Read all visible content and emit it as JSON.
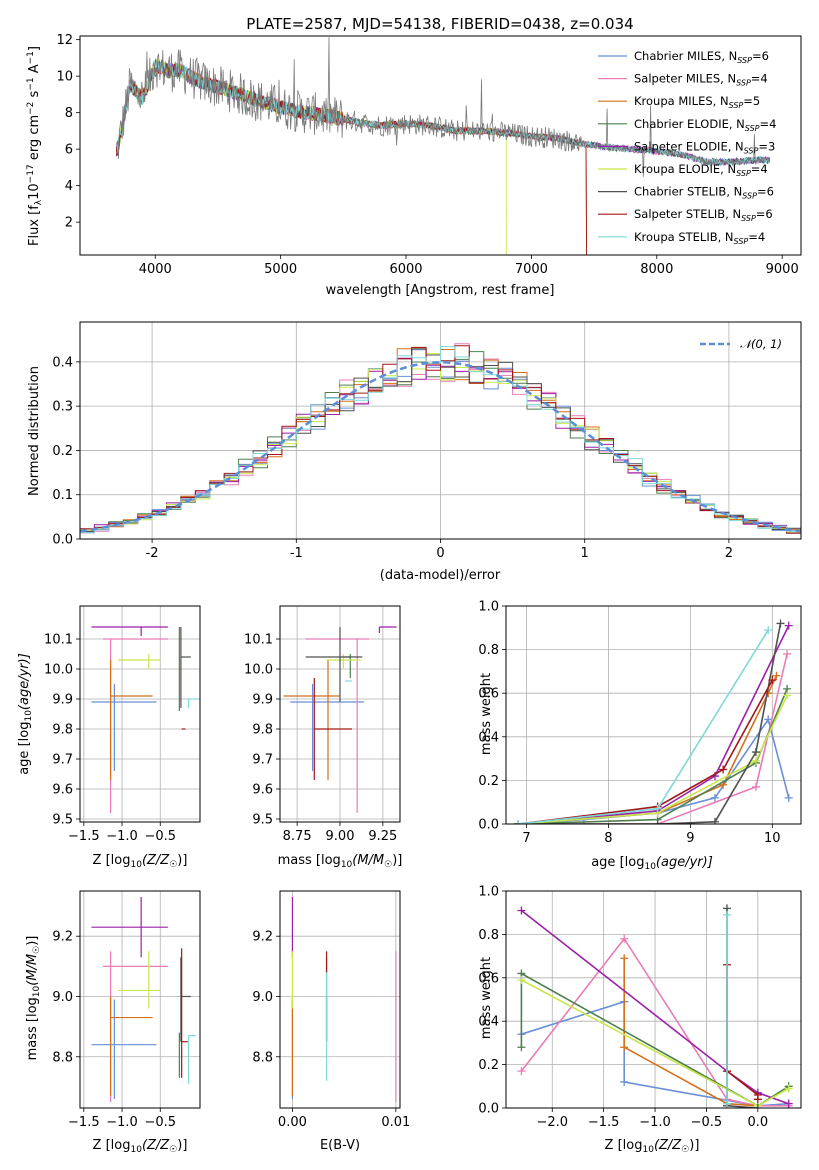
{
  "figure": {
    "title": "PLATE=2587, MJD=54138, FIBERID=0438, z=0.034"
  },
  "models": [
    {
      "label": "Chabrier MILES, N",
      "sub": "SSP",
      "tail": "=6",
      "color": "#6a8fd8"
    },
    {
      "label": "Salpeter MILES, N",
      "sub": "SSP",
      "tail": "=4",
      "color": "#e87db5"
    },
    {
      "label": "Kroupa MILES, N",
      "sub": "SSP",
      "tail": "=5",
      "color": "#d4701a"
    },
    {
      "label": "Chabrier ELODIE, N",
      "sub": "SSP",
      "tail": "=4",
      "color": "#4f7f4f"
    },
    {
      "label": "Salpeter ELODIE, N",
      "sub": "SSP",
      "tail": "=3",
      "color": "#9b1fa8"
    },
    {
      "label": "Kroupa ELODIE, N",
      "sub": "SSP",
      "tail": "=4",
      "color": "#c6e84a"
    },
    {
      "label": "Chabrier STELIB, N",
      "sub": "SSP",
      "tail": "=6",
      "color": "#505050"
    },
    {
      "label": "Salpeter STELIB, N",
      "sub": "SSP",
      "tail": "=6",
      "color": "#a01818"
    },
    {
      "label": "Kroupa STELIB, N",
      "sub": "SSP",
      "tail": "=4",
      "color": "#7fd8d8"
    }
  ],
  "chart_data": [
    {
      "id": "spectrum",
      "type": "line",
      "xlabel": "wavelength [Angstrom, rest frame]",
      "ylabel_main": "Flux [f",
      "ylabel_sub": "λ",
      "ylabel_mid": "10",
      "ylabel_exp1": "−17",
      "ylabel_mid2": " erg cm",
      "ylabel_exp2": "−2",
      "ylabel_mid3": " s",
      "ylabel_exp3": "−1",
      "ylabel_mid4": " A",
      "ylabel_exp4": "−1",
      "ylabel_end": "]",
      "xlim": [
        3400,
        9150
      ],
      "ylim": [
        0.2,
        12.2
      ],
      "xticks": [
        4000,
        5000,
        6000,
        7000,
        8000,
        9000
      ],
      "yticks": [
        2,
        4,
        6,
        8,
        10,
        12
      ],
      "grid": false,
      "legend": "top-right",
      "data_x": [
        3700,
        3800,
        3900,
        4000,
        4100,
        4200,
        4300,
        4400,
        4500,
        4600,
        4800,
        5000,
        5200,
        5400,
        5600,
        5800,
        6000,
        6200,
        6400,
        6600,
        6800,
        7000,
        7200,
        7400,
        7600,
        7800,
        8000,
        8200,
        8400,
        8600,
        8800,
        8900
      ],
      "data_y": [
        6.0,
        9.5,
        8.8,
        10.6,
        10.3,
        10.3,
        9.9,
        9.6,
        9.4,
        9.2,
        8.7,
        8.3,
        8.0,
        7.8,
        7.5,
        7.3,
        7.4,
        7.3,
        7.0,
        7.0,
        6.9,
        6.7,
        6.6,
        6.3,
        6.1,
        6.0,
        5.9,
        5.7,
        5.3,
        5.3,
        5.4,
        5.4
      ],
      "model_cutoff_x": [
        null,
        null,
        7440,
        null,
        null,
        6800,
        null,
        7440,
        null
      ]
    },
    {
      "id": "residuals",
      "type": "area",
      "xlabel": "(data-model)/error",
      "ylabel": "Normed distribution",
      "xlim": [
        -2.5,
        2.5
      ],
      "ylim": [
        0.0,
        0.49
      ],
      "xticks": [
        -2,
        -1,
        0,
        1,
        2
      ],
      "yticks": [
        0.0,
        0.1,
        0.2,
        0.3,
        0.4
      ],
      "grid": true,
      "legend": "top-right",
      "reference_label": "𝒩(0, 1)",
      "bin_width": 0.1,
      "note": "step histograms per model, approximately normal"
    },
    {
      "id": "age-vs-Z",
      "type": "scatter",
      "xlabel_pre": "Z [log",
      "xlabel_sub": "10",
      "xlabel_post": "(Z/Z",
      "xlabel_sub2": "☉",
      "xlabel_end": ")]",
      "ylabel_pre": "age  [log",
      "ylabel_sub": "10",
      "ylabel_post": "(age/yr)]",
      "xlim": [
        -1.55,
        0.02
      ],
      "ylim": [
        9.49,
        10.21
      ],
      "xticks": [
        -1.5,
        -1.0,
        -0.5
      ],
      "yticks": [
        9.5,
        9.6,
        9.7,
        9.8,
        9.9,
        10.0,
        10.1
      ],
      "grid": true,
      "points": [
        {
          "x": -1.1,
          "xerr": [
            0.3,
            0.55
          ],
          "y": 9.89,
          "yerr": [
            0.23,
            0.06
          ]
        },
        {
          "x": -1.15,
          "xerr": [
            0.1,
            0.75
          ],
          "y": 10.1,
          "yerr": [
            0.58,
            0.0
          ]
        },
        {
          "x": -1.15,
          "xerr": [
            0.0,
            0.55
          ],
          "y": 9.91,
          "yerr": [
            0.28,
            0.12
          ]
        },
        {
          "x": -0.25,
          "xerr": [
            0.0,
            0.0
          ],
          "y": 9.93,
          "yerr": [
            0.07,
            0.21
          ]
        },
        {
          "x": -0.75,
          "xerr": [
            0.65,
            0.35
          ],
          "y": 10.14,
          "yerr": [
            0.03,
            0.0
          ]
        },
        {
          "x": -0.65,
          "xerr": [
            0.4,
            0.15
          ],
          "y": 10.03,
          "yerr": [
            0.03,
            0.02
          ]
        },
        {
          "x": -0.23,
          "xerr": [
            0.0,
            0.13
          ],
          "y": 10.04,
          "yerr": [
            0.17,
            0.1
          ]
        },
        {
          "x": -0.22,
          "xerr": [
            0.0,
            0.05
          ],
          "y": 9.8,
          "yerr": [
            0.0,
            0.0
          ]
        },
        {
          "x": -0.13,
          "xerr": [
            0.0,
            0.15
          ],
          "y": 9.9,
          "yerr": [
            0.03,
            0.0
          ]
        }
      ]
    },
    {
      "id": "age-vs-mass",
      "type": "scatter",
      "xlabel_pre": "mass [log",
      "xlabel_sub": "10",
      "xlabel_post": "(M/M",
      "xlabel_sub2": "☉",
      "xlabel_end": ")]",
      "xlim": [
        8.65,
        9.35
      ],
      "ylim": [
        9.49,
        10.21
      ],
      "xticks": [
        8.75,
        9.0,
        9.25
      ],
      "yticks": [
        9.5,
        9.6,
        9.7,
        9.8,
        9.9,
        10.0,
        10.1
      ],
      "grid": true,
      "points": [
        {
          "x": 8.84,
          "xerr": [
            0.13,
            0.3
          ],
          "y": 9.89,
          "yerr": [
            0.23,
            0.06
          ]
        },
        {
          "x": 9.1,
          "xerr": [
            0.3,
            0.07
          ],
          "y": 10.1,
          "yerr": [
            0.58,
            0.0
          ]
        },
        {
          "x": 8.93,
          "xerr": [
            0.26,
            0.07
          ],
          "y": 9.91,
          "yerr": [
            0.28,
            0.12
          ]
        },
        {
          "x": 9.06,
          "xerr": [
            0.05,
            0.0
          ],
          "y": 10.04,
          "yerr": [
            0.07,
            0.01
          ]
        },
        {
          "x": 9.23,
          "xerr": [
            0.0,
            0.1
          ],
          "y": 10.14,
          "yerr": [
            0.02,
            0.0
          ]
        },
        {
          "x": 9.02,
          "xerr": [
            0.1,
            0.1
          ],
          "y": 10.03,
          "yerr": [
            0.03,
            0.02
          ]
        },
        {
          "x": 9.0,
          "xerr": [
            0.2,
            0.13
          ],
          "y": 10.04,
          "yerr": [
            0.15,
            0.1
          ]
        },
        {
          "x": 8.85,
          "xerr": [
            0.0,
            0.22
          ],
          "y": 9.8,
          "yerr": [
            0.17,
            0.17
          ]
        },
        {
          "x": 9.05,
          "xerr": [
            0.02,
            0.02
          ],
          "y": 9.96,
          "yerr": [
            0.0,
            0.0
          ]
        }
      ]
    },
    {
      "id": "massweight-vs-age",
      "type": "line",
      "xlabel_pre": "age  [log",
      "xlabel_sub": "10",
      "xlabel_post": "(age/yr)]",
      "ylabel": "mass weight",
      "xlim": [
        6.75,
        10.35
      ],
      "ylim": [
        0.0,
        1.0
      ],
      "xticks": [
        7,
        8,
        9,
        10
      ],
      "yticks": [
        0.0,
        0.2,
        0.4,
        0.6,
        0.8,
        1.0
      ],
      "grid": true,
      "series": [
        {
          "x": [
            6.9,
            7.7,
            8.6,
            9.3,
            9.95,
            10.2
          ],
          "y": [
            0.0,
            0.02,
            0.05,
            0.12,
            0.48,
            0.12
          ]
        },
        {
          "x": [
            6.9,
            8.6,
            9.8,
            10.18
          ],
          "y": [
            0.0,
            0.0,
            0.17,
            0.78
          ]
        },
        {
          "x": [
            6.9,
            8.6,
            9.4,
            9.95,
            10.05
          ],
          "y": [
            0.0,
            0.05,
            0.18,
            0.6,
            0.68
          ]
        },
        {
          "x": [
            6.9,
            8.6,
            9.8,
            10.18
          ],
          "y": [
            0.0,
            0.02,
            0.28,
            0.62
          ]
        },
        {
          "x": [
            6.9,
            8.6,
            9.3,
            10.2
          ],
          "y": [
            0.0,
            0.06,
            0.22,
            0.91
          ]
        },
        {
          "x": [
            6.9,
            8.6,
            9.8,
            10.18
          ],
          "y": [
            0.0,
            0.05,
            0.29,
            0.59
          ]
        },
        {
          "x": [
            6.9,
            8.6,
            9.3,
            9.8,
            10.1
          ],
          "y": [
            0.0,
            0.0,
            0.01,
            0.33,
            0.92
          ]
        },
        {
          "x": [
            6.9,
            8.6,
            9.4,
            10.0
          ],
          "y": [
            0.0,
            0.08,
            0.25,
            0.66
          ]
        },
        {
          "x": [
            6.9,
            8.6,
            9.95
          ],
          "y": [
            0.0,
            0.07,
            0.89
          ]
        }
      ]
    },
    {
      "id": "mass-vs-Z",
      "type": "scatter",
      "xlabel_pre": "Z [log",
      "xlabel_sub": "10",
      "xlabel_post": "(Z/Z",
      "xlabel_sub2": "☉",
      "xlabel_end": ")]",
      "ylabel_pre": "mass [log",
      "ylabel_sub": "10",
      "ylabel_post": "(M/M",
      "ylabel_sub2": "☉",
      "ylabel_end": ")]",
      "xlim": [
        -1.55,
        0.02
      ],
      "ylim": [
        8.63,
        9.35
      ],
      "xticks": [
        -1.5,
        -1.0,
        -0.5
      ],
      "yticks": [
        8.8,
        9.0,
        9.2
      ],
      "grid": true,
      "points": [
        {
          "x": -1.1,
          "xerr": [
            0.3,
            0.55
          ],
          "y": 8.84,
          "yerr": [
            0.18,
            0.15
          ]
        },
        {
          "x": -1.15,
          "xerr": [
            0.1,
            0.75
          ],
          "y": 9.1,
          "yerr": [
            0.45,
            0.05
          ]
        },
        {
          "x": -1.15,
          "xerr": [
            0.0,
            0.55
          ],
          "y": 8.93,
          "yerr": [
            0.26,
            0.07
          ]
        },
        {
          "x": -0.25,
          "xerr": [
            0.0,
            0.0
          ],
          "y": 8.83,
          "yerr": [
            0.1,
            0.05
          ]
        },
        {
          "x": -0.75,
          "xerr": [
            0.65,
            0.35
          ],
          "y": 9.23,
          "yerr": [
            0.1,
            0.1
          ]
        },
        {
          "x": -0.65,
          "xerr": [
            0.4,
            0.15
          ],
          "y": 9.02,
          "yerr": [
            0.06,
            0.13
          ]
        },
        {
          "x": -0.23,
          "xerr": [
            0.0,
            0.13
          ],
          "y": 9.0,
          "yerr": [
            0.15,
            0.13
          ]
        },
        {
          "x": -0.22,
          "xerr": [
            0.0,
            0.08
          ],
          "y": 8.85,
          "yerr": [
            0.12,
            0.31
          ]
        },
        {
          "x": -0.13,
          "xerr": [
            0.0,
            0.1
          ],
          "y": 8.87,
          "yerr": [
            0.16,
            0.0
          ]
        }
      ]
    },
    {
      "id": "mass-vs-ebv",
      "type": "scatter",
      "xlabel": "E(B-V)",
      "xlim": [
        -0.0012,
        0.0104
      ],
      "ylim": [
        8.63,
        9.35
      ],
      "xticks": [
        0.0,
        0.01
      ],
      "xtick_labels": [
        "0.00",
        "0.01"
      ],
      "yticks": [
        8.8,
        9.0,
        9.2
      ],
      "grid": true,
      "points": [
        {
          "x": 0.0,
          "y": 8.84,
          "yerr": [
            0.18,
            0.15
          ]
        },
        {
          "x": 0.01,
          "y": 9.1,
          "yerr": [
            0.45,
            0.05
          ]
        },
        {
          "x": 0.0,
          "y": 8.93,
          "yerr": [
            0.26,
            0.07
          ]
        },
        {
          "x": 0.0033,
          "y": 8.9,
          "yerr": [
            0.05,
            0.1
          ]
        },
        {
          "x": 0.0,
          "y": 9.23,
          "yerr": [
            0.1,
            0.1
          ]
        },
        {
          "x": 0.0,
          "y": 9.02,
          "yerr": [
            0.06,
            0.13
          ]
        },
        {
          "x": 0.0033,
          "y": 9.0,
          "yerr": [
            0.15,
            0.13
          ]
        },
        {
          "x": 0.0033,
          "y": 9.08,
          "yerr": [
            0.0,
            0.07
          ]
        },
        {
          "x": 0.0033,
          "y": 8.9,
          "yerr": [
            0.18,
            0.18
          ]
        }
      ]
    },
    {
      "id": "massweight-vs-Z",
      "type": "line",
      "xlabel_pre": "Z [log",
      "xlabel_sub": "10",
      "xlabel_post": "(Z/Z",
      "xlabel_sub2": "☉",
      "xlabel_end": ")]",
      "ylabel": "mass weight",
      "xlim": [
        -2.45,
        0.42
      ],
      "ylim": [
        0.0,
        1.0
      ],
      "xticks": [
        -2.0,
        -1.5,
        -1.0,
        -0.5,
        0.0
      ],
      "yticks": [
        0.0,
        0.2,
        0.4,
        0.6,
        0.8,
        1.0
      ],
      "grid": true,
      "series": [
        {
          "x": [
            -2.3,
            -1.3,
            -1.3,
            0.0,
            0.3
          ],
          "y": [
            0.34,
            0.49,
            0.12,
            0.01,
            0.02
          ]
        },
        {
          "x": [
            -2.3,
            -1.3,
            -0.3,
            0.0,
            0.3
          ],
          "y": [
            0.17,
            0.78,
            0.04,
            0.01,
            0.01
          ]
        },
        {
          "x": [
            -1.3,
            -1.3,
            -0.3,
            0.0
          ],
          "y": [
            0.69,
            0.28,
            0.02,
            0.01
          ]
        },
        {
          "x": [
            -2.3,
            -2.3,
            0.0,
            0.3
          ],
          "y": [
            0.28,
            0.62,
            0.01,
            0.1
          ]
        },
        {
          "x": [
            -2.3,
            -0.3,
            0.0,
            0.3
          ],
          "y": [
            0.91,
            0.17,
            0.07,
            0.02
          ]
        },
        {
          "x": [
            -2.3,
            0.0,
            0.3
          ],
          "y": [
            0.59,
            0.01,
            0.09
          ]
        },
        {
          "x": [
            -0.3,
            -0.3,
            0.0
          ],
          "y": [
            0.92,
            0.01,
            0.0
          ]
        },
        {
          "x": [
            -0.3,
            -0.3,
            0.0,
            0.0
          ],
          "y": [
            0.66,
            0.17,
            0.06,
            0.04
          ]
        },
        {
          "x": [
            -0.3,
            -0.3
          ],
          "y": [
            0.89,
            0.02
          ]
        }
      ]
    }
  ]
}
